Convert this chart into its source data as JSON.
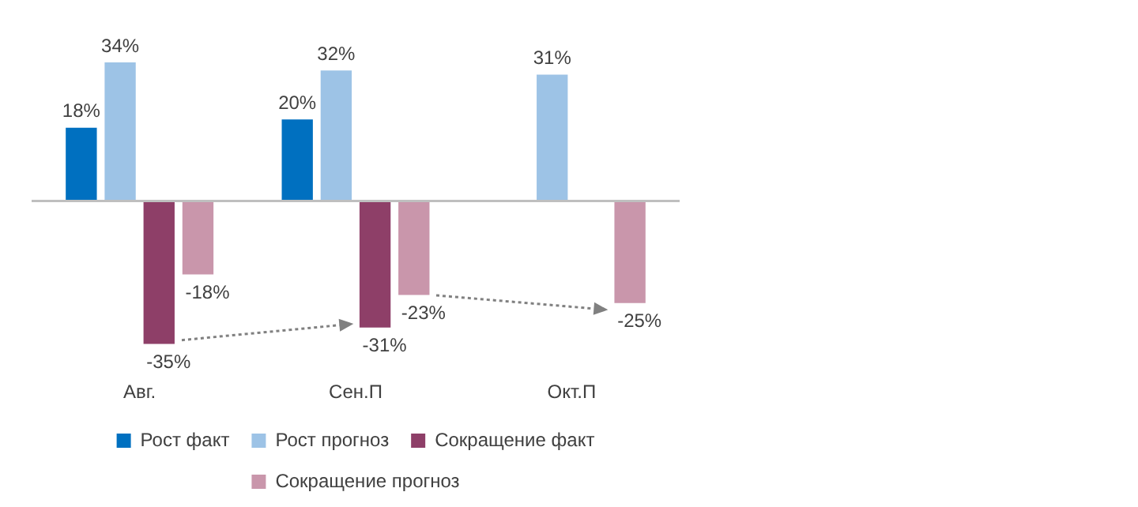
{
  "chart_data": {
    "type": "bar",
    "categories": [
      "Авг.",
      "Сен.П",
      "Окт.П"
    ],
    "series": [
      {
        "name": "Рост факт",
        "color": "#0070c0",
        "values": [
          18,
          20,
          null
        ],
        "value_labels": [
          "18%",
          "20%",
          null
        ]
      },
      {
        "name": "Рост прогноз",
        "color": "#9dc3e6",
        "values": [
          34,
          32,
          31
        ],
        "value_labels": [
          "34%",
          "32%",
          "31%"
        ]
      },
      {
        "name": "Сокращение факт",
        "color": "#8e3f68",
        "values": [
          -35,
          -31,
          null
        ],
        "value_labels": [
          "-35%",
          "-31%",
          null
        ]
      },
      {
        "name": "Сокращение прогноз",
        "color": "#c996ab",
        "values": [
          -18,
          -23,
          -25
        ],
        "value_labels": [
          "-18%",
          "-23%",
          "-25%"
        ]
      }
    ],
    "legend": "bottom",
    "grid": false,
    "tick_labels": "x"
  }
}
